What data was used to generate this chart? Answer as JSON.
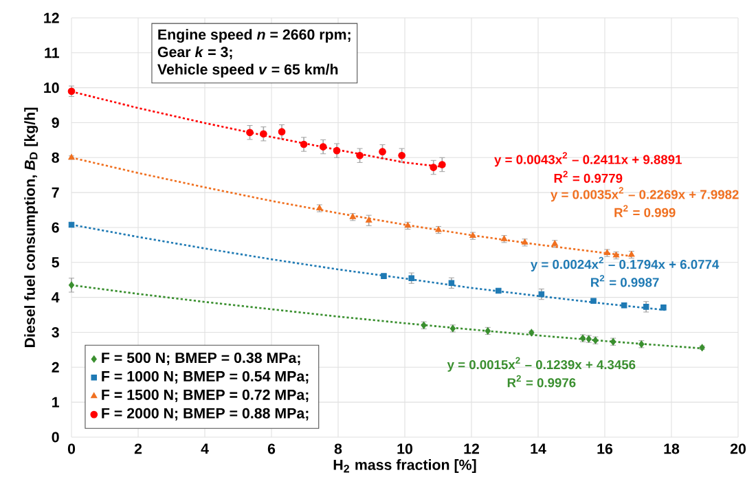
{
  "chart_data": {
    "type": "scatter",
    "xlabel": "H$_{2}$ mass fraction [%]",
    "ylabel": "Diesel fuel consumption, *B*$_{D}$ [kg/h]",
    "xlim": [
      0,
      20
    ],
    "ylim": [
      0,
      12
    ],
    "xticks": [
      0,
      2,
      4,
      6,
      8,
      10,
      12,
      14,
      16,
      18,
      20
    ],
    "yticks": [
      0,
      1,
      2,
      3,
      4,
      5,
      6,
      7,
      8,
      9,
      10,
      11,
      12
    ],
    "grid": true,
    "legend": "bottom left",
    "annotations": [
      "Engine speed *n* = 2660 rpm;",
      "Gear *k* = 3;",
      "Vehicle speed *v* = 65 km/h",
      "y = 0.0043x$^{2}$ – 0.2411x + 9.8891",
      "R$^{2}$ = 0.9779",
      "y = 0.0035x$^{2}$ – 0.2269x + 7.9982",
      "R$^{2}$ = 0.999",
      "y = 0.0024x$^{2}$ – 0.1794x + 6.0774",
      "R$^{2}$ = 0.9987",
      "y = 0.0015x$^{2}$ – 0.1239x + 4.3456",
      "R$^{2}$ = 0.9976"
    ],
    "series": [
      {
        "name": "F = 500 N; BMEP = 0.38 MPa;",
        "color": "#3a8f2f",
        "marker": "diamond",
        "x": [
          0,
          10.57,
          11.44,
          12.49,
          13.8,
          15.34,
          15.52,
          15.72,
          16.25,
          17.1,
          18.92
        ],
        "values": [
          4.35,
          3.2,
          3.11,
          3.04,
          2.99,
          2.83,
          2.81,
          2.77,
          2.73,
          2.66,
          2.56
        ],
        "errors": [
          0.2,
          0.1,
          0.1,
          0.1,
          0.05,
          0.1,
          0.1,
          0.1,
          0.1,
          0.1,
          0.05
        ]
      },
      {
        "name": "F = 1000 N; BMEP = 0.54 MPa;",
        "color": "#1f7ab4",
        "marker": "square",
        "x": [
          0,
          9.37,
          10.2,
          11.4,
          12.81,
          14.1,
          15.66,
          16.58,
          17.24,
          17.76
        ],
        "values": [
          6.08,
          4.61,
          4.55,
          4.41,
          4.19,
          4.09,
          3.9,
          3.77,
          3.73,
          3.71
        ],
        "errors": [
          0.05,
          0.05,
          0.15,
          0.15,
          0.05,
          0.15,
          0.05,
          0.05,
          0.15,
          0.05
        ]
      },
      {
        "name": "F = 1500 N; BMEP = 0.72 MPa;",
        "color": "#f07020",
        "marker": "triangle",
        "x": [
          0,
          7.44,
          8.44,
          8.92,
          10.09,
          11.01,
          12.04,
          12.98,
          13.6,
          14.5,
          16.07,
          16.34,
          16.8
        ],
        "values": [
          8.0,
          6.55,
          6.3,
          6.2,
          6.05,
          5.93,
          5.76,
          5.67,
          5.57,
          5.53,
          5.27,
          5.2,
          5.22
        ],
        "errors": [
          0.05,
          0.1,
          0.1,
          0.15,
          0.1,
          0.1,
          0.1,
          0.1,
          0.1,
          0.1,
          0.1,
          0.1,
          0.1
        ]
      },
      {
        "name": "F = 2000 N; BMEP = 0.88 MPa;",
        "color": "#ff0000",
        "marker": "circle",
        "x": [
          0,
          5.35,
          5.76,
          6.31,
          6.97,
          7.55,
          7.96,
          8.65,
          9.33,
          9.91,
          10.86,
          11.12
        ],
        "values": [
          9.9,
          8.72,
          8.68,
          8.74,
          8.38,
          8.31,
          8.2,
          8.06,
          8.17,
          8.06,
          7.72,
          7.8
        ],
        "errors": [
          0.15,
          0.2,
          0.2,
          0.2,
          0.2,
          0.2,
          0.2,
          0.2,
          0.2,
          0.2,
          0.2,
          0.2
        ]
      },
      {
        "type": "line",
        "line_style": "dotted",
        "color": "#3a8f2f",
        "x": [
          0,
          2,
          4,
          6,
          8,
          10,
          12,
          14,
          16,
          18.9
        ],
        "values": [
          4.35,
          4.1,
          3.87,
          3.66,
          3.45,
          3.26,
          3.08,
          2.91,
          2.75,
          2.54
        ]
      },
      {
        "type": "line",
        "line_style": "dotted",
        "color": "#1f7ab4",
        "x": [
          0,
          2,
          4,
          6,
          8,
          10,
          12,
          14,
          16,
          17.8
        ],
        "values": [
          6.08,
          5.73,
          5.4,
          5.09,
          4.8,
          4.54,
          4.27,
          4.04,
          3.82,
          3.64
        ]
      },
      {
        "type": "line",
        "line_style": "dotted",
        "color": "#f07020",
        "x": [
          0,
          2,
          4,
          6,
          8,
          10,
          12,
          14,
          16,
          16.8
        ],
        "values": [
          8.0,
          7.56,
          7.15,
          6.76,
          6.41,
          6.08,
          5.78,
          5.51,
          5.27,
          5.18
        ]
      },
      {
        "type": "line",
        "line_style": "dotted",
        "color": "#ff0000",
        "x": [
          0,
          2,
          4,
          6,
          8,
          10,
          11.1
        ],
        "values": [
          9.89,
          9.42,
          8.99,
          8.59,
          8.22,
          7.86,
          7.74
        ]
      }
    ]
  }
}
